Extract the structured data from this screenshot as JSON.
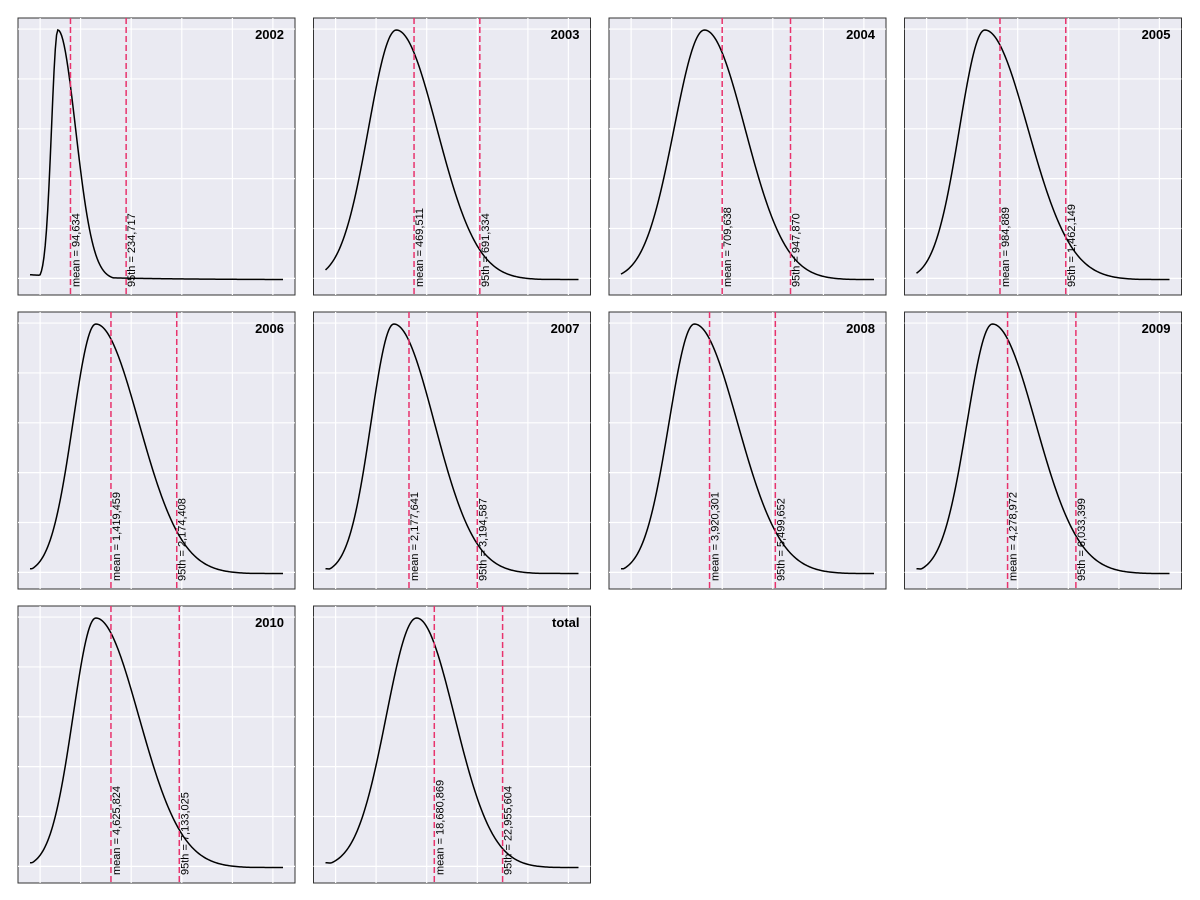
{
  "chart_data": [
    {
      "type": "line",
      "title": "2002",
      "xlim": [
        0,
        1
      ],
      "curve": {
        "peak_x": 0.11,
        "sigma_left": 0.025,
        "sigma_right": 0.07,
        "baseline": 0.05
      },
      "markers": [
        {
          "x": 0.16,
          "label": "mean = 94,634"
        },
        {
          "x": 0.38,
          "label": "95th = 234,717"
        }
      ]
    },
    {
      "type": "line",
      "title": "2003",
      "xlim": [
        0,
        1
      ],
      "curve": {
        "peak_x": 0.28,
        "sigma_left": 0.11,
        "sigma_right": 0.16,
        "baseline": 0.05
      },
      "markers": [
        {
          "x": 0.35,
          "label": "mean = 469,511"
        },
        {
          "x": 0.61,
          "label": "95th = 691,334"
        }
      ]
    },
    {
      "type": "line",
      "title": "2004",
      "xlim": [
        0,
        1
      ],
      "curve": {
        "peak_x": 0.33,
        "sigma_left": 0.12,
        "sigma_right": 0.16,
        "baseline": 0.05
      },
      "markers": [
        {
          "x": 0.4,
          "label": "mean = 709,638"
        },
        {
          "x": 0.67,
          "label": "95th = 947,870"
        }
      ]
    },
    {
      "type": "line",
      "title": "2005",
      "xlim": [
        0,
        1
      ],
      "curve": {
        "peak_x": 0.27,
        "sigma_left": 0.1,
        "sigma_right": 0.17,
        "baseline": 0.05
      },
      "markers": [
        {
          "x": 0.33,
          "label": "mean = 984,889"
        },
        {
          "x": 0.59,
          "label": "95th = 1,462,149"
        }
      ]
    },
    {
      "type": "line",
      "title": "2006",
      "xlim": [
        0,
        1
      ],
      "curve": {
        "peak_x": 0.26,
        "sigma_left": 0.09,
        "sigma_right": 0.17,
        "baseline": 0.05
      },
      "markers": [
        {
          "x": 0.32,
          "label": "mean = 1,419,459"
        },
        {
          "x": 0.58,
          "label": "95th = 2,174,408"
        }
      ]
    },
    {
      "type": "line",
      "title": "2007",
      "xlim": [
        0,
        1
      ],
      "curve": {
        "peak_x": 0.27,
        "sigma_left": 0.09,
        "sigma_right": 0.16,
        "baseline": 0.05
      },
      "markers": [
        {
          "x": 0.33,
          "label": "mean = 2,177,641"
        },
        {
          "x": 0.6,
          "label": "95th = 3,194,587"
        }
      ]
    },
    {
      "type": "line",
      "title": "2008",
      "xlim": [
        0,
        1
      ],
      "curve": {
        "peak_x": 0.29,
        "sigma_left": 0.1,
        "sigma_right": 0.17,
        "baseline": 0.05
      },
      "markers": [
        {
          "x": 0.35,
          "label": "mean = 3,920,301"
        },
        {
          "x": 0.61,
          "label": "95th = 5,499,652"
        }
      ]
    },
    {
      "type": "line",
      "title": "2009",
      "xlim": [
        0,
        1
      ],
      "curve": {
        "peak_x": 0.3,
        "sigma_left": 0.1,
        "sigma_right": 0.17,
        "baseline": 0.05
      },
      "markers": [
        {
          "x": 0.36,
          "label": "mean = 4,278,972"
        },
        {
          "x": 0.63,
          "label": "95th = 6,033,399"
        }
      ]
    },
    {
      "type": "line",
      "title": "2010",
      "xlim": [
        0,
        1
      ],
      "curve": {
        "peak_x": 0.26,
        "sigma_left": 0.09,
        "sigma_right": 0.17,
        "baseline": 0.05
      },
      "markers": [
        {
          "x": 0.32,
          "label": "mean = 4,625,824"
        },
        {
          "x": 0.59,
          "label": "95th = 7,133,025"
        }
      ]
    },
    {
      "type": "line",
      "title": "total",
      "xlim": [
        0,
        1
      ],
      "curve": {
        "peak_x": 0.36,
        "sigma_left": 0.12,
        "sigma_right": 0.15,
        "baseline": 0.05
      },
      "markers": [
        {
          "x": 0.43,
          "label": "mean = 18,680,869"
        },
        {
          "x": 0.7,
          "label": "95th = 22,955,604"
        }
      ]
    }
  ],
  "colors": {
    "panel_background": "#eaeaf2",
    "gridline": "#ffffff",
    "curve": "#000000",
    "marker": "#e8336d"
  }
}
